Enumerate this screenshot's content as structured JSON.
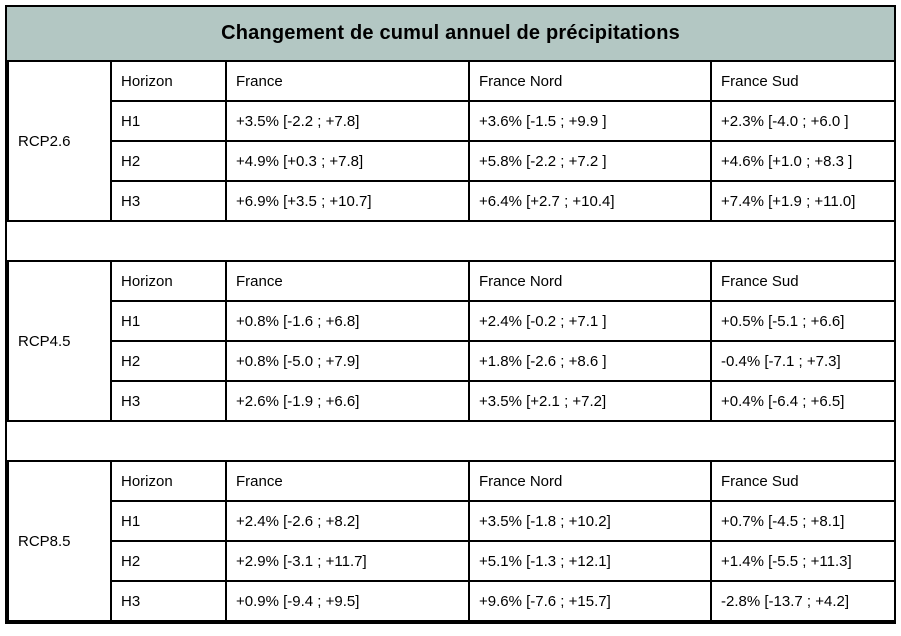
{
  "chart_data": {
    "type": "table",
    "title": "Changement de cumul annuel de précipitations",
    "columns": [
      "Horizon",
      "France",
      "France Nord",
      "France Sud"
    ],
    "sections": [
      {
        "scenario": "RCP2.6",
        "rows": [
          {
            "horizon": "H1",
            "france": "+3.5% [-2.2 ; +7.8]",
            "france_nord": "+3.6% [-1.5 ; +9.9 ]",
            "france_sud": "+2.3% [-4.0 ; +6.0 ]"
          },
          {
            "horizon": "H2",
            "france": "+4.9% [+0.3 ; +7.8]",
            "france_nord": "+5.8% [-2.2 ; +7.2 ]",
            "france_sud": "+4.6% [+1.0 ; +8.3 ]"
          },
          {
            "horizon": "H3",
            "france": "+6.9% [+3.5 ; +10.7]",
            "france_nord": "+6.4% [+2.7 ; +10.4]",
            "france_sud": "+7.4% [+1.9 ; +11.0]"
          }
        ]
      },
      {
        "scenario": "RCP4.5",
        "rows": [
          {
            "horizon": "H1",
            "france": "+0.8% [-1.6 ; +6.8]",
            "france_nord": "+2.4% [-0.2 ; +7.1 ]",
            "france_sud": "+0.5% [-5.1 ; +6.6]"
          },
          {
            "horizon": "H2",
            "france": "+0.8% [-5.0 ; +7.9]",
            "france_nord": "+1.8% [-2.6 ; +8.6 ]",
            "france_sud": "-0.4% [-7.1 ; +7.3]"
          },
          {
            "horizon": "H3",
            "france": "+2.6% [-1.9 ; +6.6]",
            "france_nord": "+3.5% [+2.1 ; +7.2]",
            "france_sud": "+0.4% [-6.4 ; +6.5]"
          }
        ]
      },
      {
        "scenario": "RCP8.5",
        "rows": [
          {
            "horizon": "H1",
            "france": "+2.4% [-2.6 ; +8.2]",
            "france_nord": "+3.5% [-1.8 ; +10.2]",
            "france_sud": "+0.7% [-4.5 ; +8.1]"
          },
          {
            "horizon": "H2",
            "france": "+2.9% [-3.1 ; +11.7]",
            "france_nord": "+5.1% [-1.3 ; +12.1]",
            "france_sud": "+1.4% [-5.5 ; +11.3]"
          },
          {
            "horizon": "H3",
            "france": "+0.9% [-9.4 ; +9.5]",
            "france_nord": "+9.6% [-7.6 ; +15.7]",
            "france_sud": "-2.8% [-13.7 ; +4.2]"
          }
        ]
      }
    ]
  },
  "colors": {
    "title_background": "#b3c7c3",
    "header_cell_background": "#dcdcdc",
    "border": "#000000",
    "text": "#000000"
  }
}
